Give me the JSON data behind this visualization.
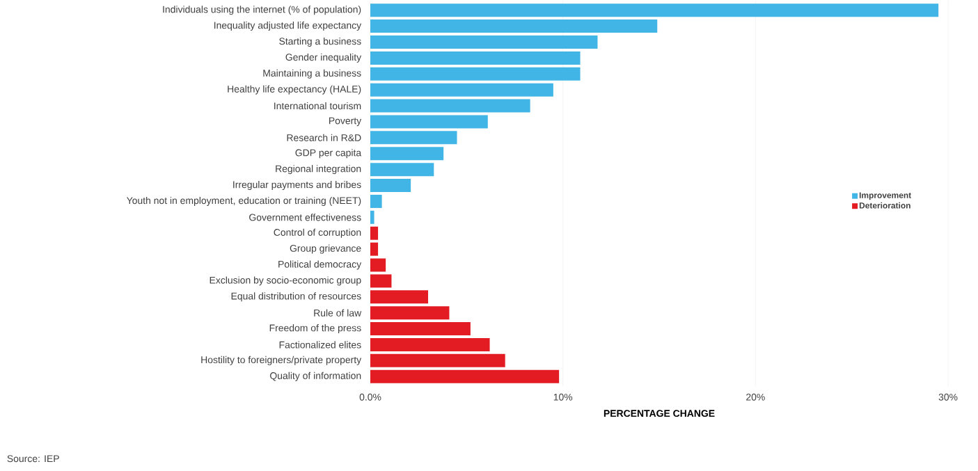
{
  "chart_data": {
    "type": "bar",
    "orientation": "horizontal",
    "xlabel": "PERCENTAGE CHANGE",
    "categories": [
      "Individuals using the internet (% of population)",
      "Inequality adjusted life expectancy",
      "Starting a business",
      "Gender inequality",
      "Maintaining a business",
      "Healthy life expectancy (HALE)",
      "International tourism",
      "Poverty",
      "Research in R&D",
      "GDP per capita",
      "Regional integration",
      "Irregular payments and bribes",
      "Youth not in employment, education or training (NEET)",
      "Government effectiveness",
      "Control of corruption",
      "Group grievance",
      "Political democracy",
      "Exclusion by socio-economic group",
      "Equal distribution of resources",
      "Rule of law",
      "Freedom of the press",
      "Factionalized elites",
      "Hostility to foreigners/private property",
      "Quality of information"
    ],
    "series": [
      {
        "name": "Improvement",
        "color": "#41b6e6",
        "values": [
          29.5,
          14.9,
          11.8,
          10.9,
          10.9,
          9.5,
          8.3,
          6.1,
          4.5,
          3.8,
          3.3,
          2.1,
          0.6,
          0.2,
          null,
          null,
          null,
          null,
          null,
          null,
          null,
          null,
          null,
          null
        ]
      },
      {
        "name": "Deterioration",
        "color": "#e31b23",
        "values": [
          null,
          null,
          null,
          null,
          null,
          null,
          null,
          null,
          null,
          null,
          null,
          null,
          null,
          null,
          0.4,
          0.4,
          0.8,
          1.1,
          3.0,
          4.1,
          5.2,
          6.2,
          7.0,
          9.8
        ]
      }
    ],
    "xlim": [
      0,
      30
    ],
    "xticks": [
      {
        "value": 0,
        "label": "0.0%"
      },
      {
        "value": 10,
        "label": "10%"
      },
      {
        "value": 20,
        "label": "20%"
      },
      {
        "value": 30,
        "label": "30%"
      }
    ],
    "grid": "x",
    "legend": "right",
    "annotations": [
      "Source: IEP"
    ]
  }
}
